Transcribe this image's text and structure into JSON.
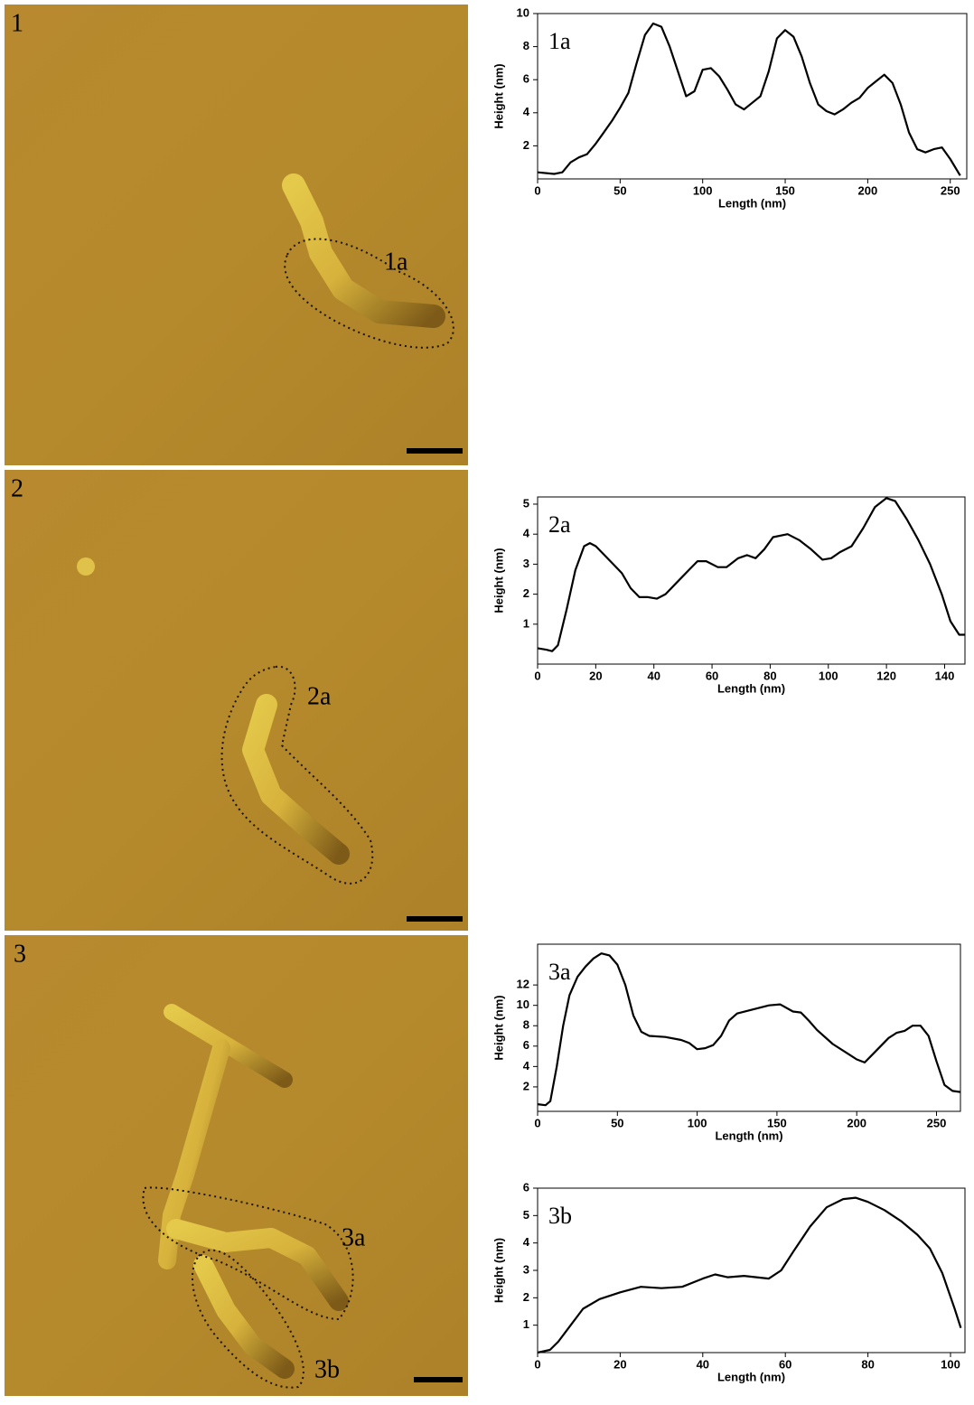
{
  "panels": [
    {
      "label": "1",
      "regions": [
        "1a"
      ]
    },
    {
      "label": "2",
      "regions": [
        "2a"
      ]
    },
    {
      "label": "3",
      "regions": [
        "3a",
        "3b"
      ]
    }
  ],
  "chart_data": [
    {
      "type": "line",
      "annotation": "1a",
      "xlabel": "Length (nm)",
      "ylabel": "Height (nm)",
      "color": "#000000",
      "xlim": [
        0,
        260
      ],
      "ylim": [
        0,
        10
      ],
      "xticks": [
        0,
        50,
        100,
        150,
        200,
        250
      ],
      "yticks": [
        2,
        4,
        6,
        8,
        10
      ],
      "x": [
        0,
        10,
        15,
        20,
        25,
        30,
        35,
        40,
        45,
        50,
        55,
        60,
        65,
        70,
        75,
        80,
        85,
        90,
        95,
        100,
        105,
        110,
        115,
        120,
        125,
        130,
        135,
        140,
        145,
        150,
        155,
        160,
        165,
        170,
        175,
        180,
        185,
        190,
        195,
        200,
        205,
        210,
        215,
        220,
        225,
        230,
        235,
        240,
        245,
        250,
        256
      ],
      "values": [
        0.4,
        0.3,
        0.4,
        1,
        1.3,
        1.5,
        2.1,
        2.8,
        3.5,
        4.3,
        5.2,
        7,
        8.7,
        9.4,
        9.2,
        8,
        6.5,
        5,
        5.3,
        6.6,
        6.7,
        6.2,
        5.4,
        4.5,
        4.2,
        4.6,
        5,
        6.5,
        8.5,
        9,
        8.6,
        7.4,
        5.8,
        4.5,
        4.1,
        3.9,
        4.2,
        4.6,
        4.9,
        5.5,
        5.9,
        6.3,
        5.8,
        4.5,
        2.8,
        1.8,
        1.6,
        1.8,
        1.9,
        1.2,
        0.2
      ]
    },
    {
      "type": "line",
      "annotation": "2a",
      "xlabel": "Length (nm)",
      "ylabel": "Height (nm)",
      "color": "#000000",
      "xlim": [
        0,
        147
      ],
      "ylim": [
        -0.33,
        5.24
      ],
      "xticks": [
        0,
        20,
        40,
        60,
        80,
        100,
        120,
        140
      ],
      "yticks": [
        1,
        2,
        3,
        4,
        5
      ],
      "x": [
        0,
        3,
        5,
        7,
        10,
        13,
        16,
        18,
        20,
        23,
        26,
        29,
        32,
        35,
        38,
        41,
        44,
        48,
        52,
        55,
        58,
        62,
        65,
        69,
        72,
        75,
        78,
        81,
        86,
        90,
        94,
        98,
        101,
        104,
        108,
        112,
        116,
        120,
        123,
        127,
        131,
        135,
        139,
        142,
        145,
        147
      ],
      "values": [
        0.2,
        0.15,
        0.1,
        0.3,
        1.5,
        2.8,
        3.6,
        3.7,
        3.6,
        3.3,
        3,
        2.7,
        2.2,
        1.9,
        1.9,
        1.85,
        2,
        2.4,
        2.8,
        3.1,
        3.1,
        2.9,
        2.9,
        3.2,
        3.3,
        3.2,
        3.5,
        3.9,
        4,
        3.8,
        3.5,
        3.15,
        3.2,
        3.4,
        3.6,
        4.2,
        4.9,
        5.2,
        5.1,
        4.5,
        3.8,
        3,
        2,
        1.1,
        0.65,
        0.65
      ]
    },
    {
      "type": "line",
      "annotation": "3a",
      "xlabel": "Length (nm)",
      "ylabel": "Height (nm)",
      "color": "#000000",
      "xlim": [
        0,
        265
      ],
      "ylim": [
        -0.4,
        16
      ],
      "xticks": [
        0,
        50,
        100,
        150,
        200,
        250
      ],
      "yticks": [
        2,
        4,
        6,
        8,
        10,
        12
      ],
      "x": [
        0,
        5,
        8,
        12,
        16,
        20,
        25,
        30,
        35,
        40,
        45,
        50,
        55,
        60,
        65,
        70,
        80,
        90,
        95,
        100,
        105,
        110,
        115,
        120,
        125,
        135,
        145,
        152,
        160,
        165,
        170,
        175,
        185,
        195,
        200,
        205,
        210,
        220,
        225,
        230,
        235,
        240,
        245,
        250,
        255,
        260,
        265
      ],
      "values": [
        0.3,
        0.2,
        0.6,
        4,
        8,
        11,
        12.8,
        13.8,
        14.6,
        15.1,
        14.9,
        14,
        12,
        9,
        7.4,
        7,
        6.9,
        6.6,
        6.3,
        5.7,
        5.8,
        6.1,
        7,
        8.5,
        9.2,
        9.6,
        10,
        10.1,
        9.4,
        9.3,
        8.5,
        7.6,
        6.2,
        5.2,
        4.7,
        4.4,
        5.2,
        6.8,
        7.3,
        7.5,
        8,
        8,
        7,
        4.5,
        2.2,
        1.6,
        1.5
      ]
    },
    {
      "type": "line",
      "annotation": "3b",
      "xlabel": "Length (nm)",
      "ylabel": "Height (nm)",
      "color": "#000000",
      "xlim": [
        0,
        103.5
      ],
      "ylim": [
        0,
        6
      ],
      "xticks": [
        0,
        20,
        40,
        60,
        80,
        100
      ],
      "yticks": [
        1,
        2,
        3,
        4,
        5,
        6
      ],
      "x": [
        0,
        3,
        5,
        8,
        11,
        15,
        20,
        25,
        30,
        35,
        40,
        43,
        46,
        50,
        53,
        56,
        59,
        62,
        66,
        70,
        74,
        77,
        80,
        84,
        88,
        92,
        95,
        98,
        101,
        102.5
      ],
      "values": [
        0,
        0.1,
        0.4,
        1,
        1.6,
        1.95,
        2.2,
        2.4,
        2.35,
        2.4,
        2.7,
        2.85,
        2.75,
        2.8,
        2.75,
        2.7,
        3,
        3.7,
        4.6,
        5.3,
        5.6,
        5.65,
        5.5,
        5.2,
        4.8,
        4.3,
        3.8,
        2.9,
        1.6,
        0.9
      ]
    }
  ]
}
